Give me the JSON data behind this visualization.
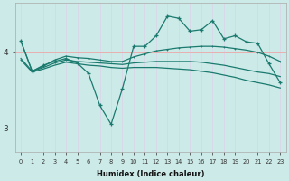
{
  "x": [
    0,
    1,
    2,
    3,
    4,
    5,
    6,
    7,
    8,
    9,
    10,
    11,
    12,
    13,
    14,
    15,
    16,
    17,
    18,
    19,
    20,
    21,
    22,
    23
  ],
  "line_volatile": [
    4.15,
    3.75,
    3.83,
    3.88,
    3.92,
    3.86,
    3.72,
    3.3,
    3.05,
    3.52,
    4.08,
    4.08,
    4.22,
    4.48,
    4.45,
    4.28,
    4.3,
    4.42,
    4.18,
    4.22,
    4.14,
    4.12,
    3.85,
    3.6
  ],
  "line_a": [
    4.15,
    3.75,
    3.82,
    3.9,
    3.95,
    3.93,
    3.92,
    3.9,
    3.88,
    3.88,
    3.94,
    3.98,
    4.02,
    4.04,
    4.06,
    4.07,
    4.08,
    4.08,
    4.07,
    4.05,
    4.03,
    4.0,
    3.95,
    3.88
  ],
  "line_b": [
    3.92,
    3.75,
    3.8,
    3.86,
    3.9,
    3.88,
    3.87,
    3.86,
    3.85,
    3.84,
    3.86,
    3.87,
    3.88,
    3.88,
    3.88,
    3.88,
    3.87,
    3.85,
    3.83,
    3.8,
    3.77,
    3.74,
    3.72,
    3.68
  ],
  "line_c": [
    3.9,
    3.74,
    3.78,
    3.83,
    3.87,
    3.85,
    3.83,
    3.82,
    3.8,
    3.79,
    3.8,
    3.8,
    3.8,
    3.79,
    3.78,
    3.77,
    3.75,
    3.73,
    3.7,
    3.67,
    3.63,
    3.6,
    3.57,
    3.53
  ],
  "color": "#1a7a6e",
  "bg_color": "#cceae8",
  "grid_h_color": "#e8b0b0",
  "grid_v_color": "#d8d8e8",
  "xlabel": "Humidex (Indice chaleur)",
  "yticks": [
    3,
    4
  ],
  "xlim": [
    -0.5,
    23.5
  ],
  "ylim": [
    2.68,
    4.65
  ]
}
